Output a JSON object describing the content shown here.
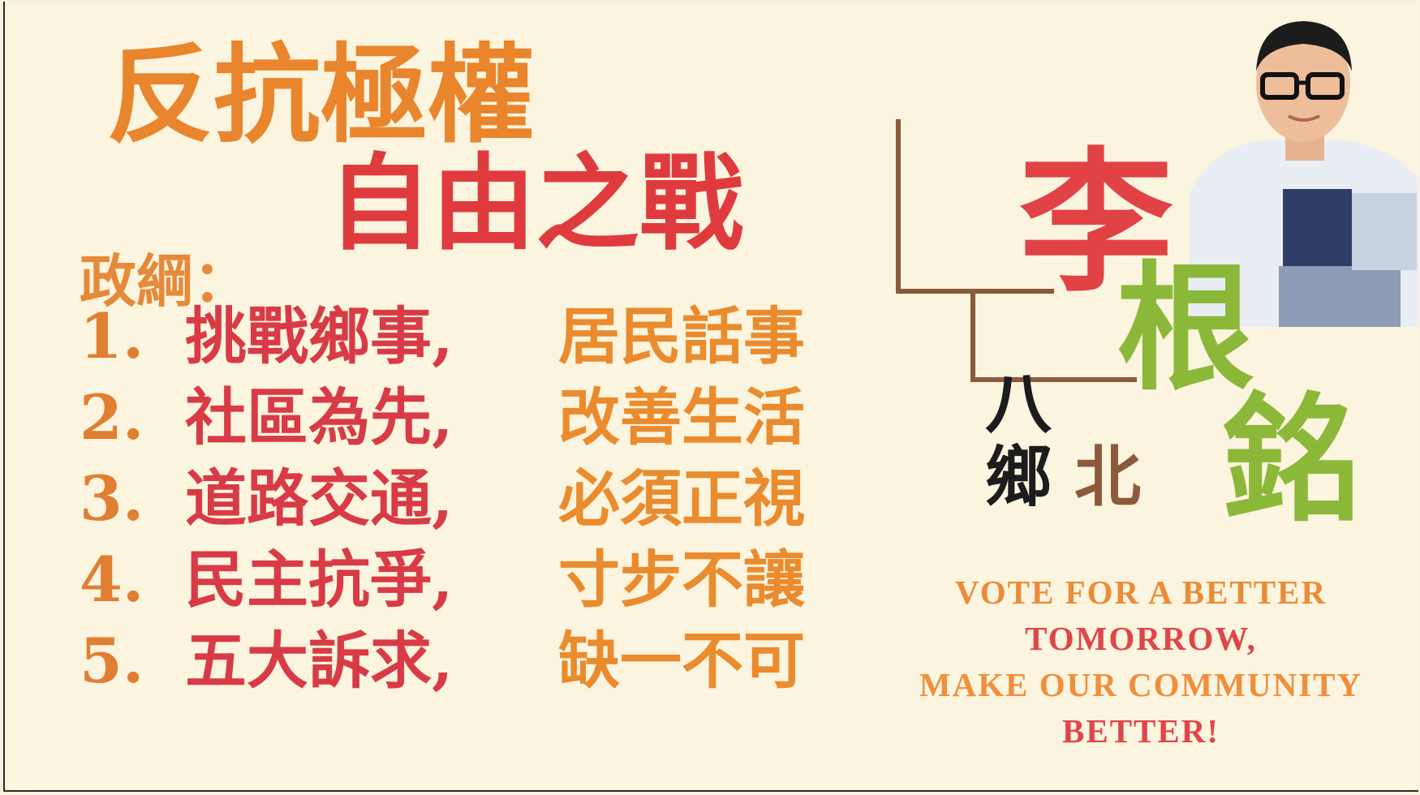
{
  "headline": {
    "line1": "反抗極權",
    "line2": "自由之戰"
  },
  "platform": {
    "heading": "政綱：",
    "items": [
      {
        "number": "1.",
        "part1": "挑戰鄉事,",
        "part2": "居民話事"
      },
      {
        "number": "2.",
        "part1": "社區為先,",
        "part2": "改善生活"
      },
      {
        "number": "3.",
        "part1": "道路交通,",
        "part2": "必須正視"
      },
      {
        "number": "4.",
        "part1": "民主抗爭,",
        "part2": "寸步不讓"
      },
      {
        "number": "5.",
        "part1": "五大訴求,",
        "part2": "缺一不可"
      }
    ]
  },
  "candidate": {
    "surname": "李",
    "given_name_1": "根",
    "given_name_2": "銘",
    "district_1": "八",
    "district_2": "鄉",
    "district_3": "北"
  },
  "slogan": {
    "line1": "VOTE FOR A BETTER",
    "line2": "TOMORROW,",
    "line3": "MAKE OUR COMMUNITY",
    "line4": "BETTER!"
  },
  "colors": {
    "background": "#fbf4de",
    "orange": "#e9852c",
    "red": "#df3b3f",
    "green": "#8cb83a"
  }
}
